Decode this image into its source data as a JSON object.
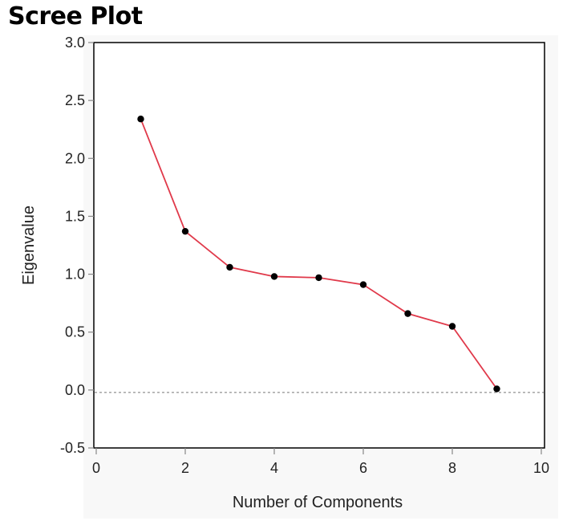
{
  "title": "Scree Plot",
  "colors": {
    "line": "#e0394a",
    "point": "#000000",
    "background": "#f8f8f8",
    "reference": "#777777"
  },
  "chart_data": {
    "type": "line",
    "title": "Scree Plot",
    "xlabel": "Number of Components",
    "ylabel": "Eigenvalue",
    "xlim": [
      0,
      10
    ],
    "ylim": [
      -0.5,
      3.0
    ],
    "xticks": [
      "0",
      "2",
      "4",
      "6",
      "8",
      "10"
    ],
    "yticks": [
      "-0.5",
      "0.0",
      "0.5",
      "1.0",
      "1.5",
      "2.0",
      "2.5",
      "3.0"
    ],
    "reference_line_y": 0,
    "x": [
      1,
      2,
      3,
      4,
      5,
      6,
      7,
      8,
      9
    ],
    "values": [
      2.34,
      1.37,
      1.06,
      0.98,
      0.97,
      0.91,
      0.66,
      0.55,
      0.01
    ],
    "grid": false
  }
}
